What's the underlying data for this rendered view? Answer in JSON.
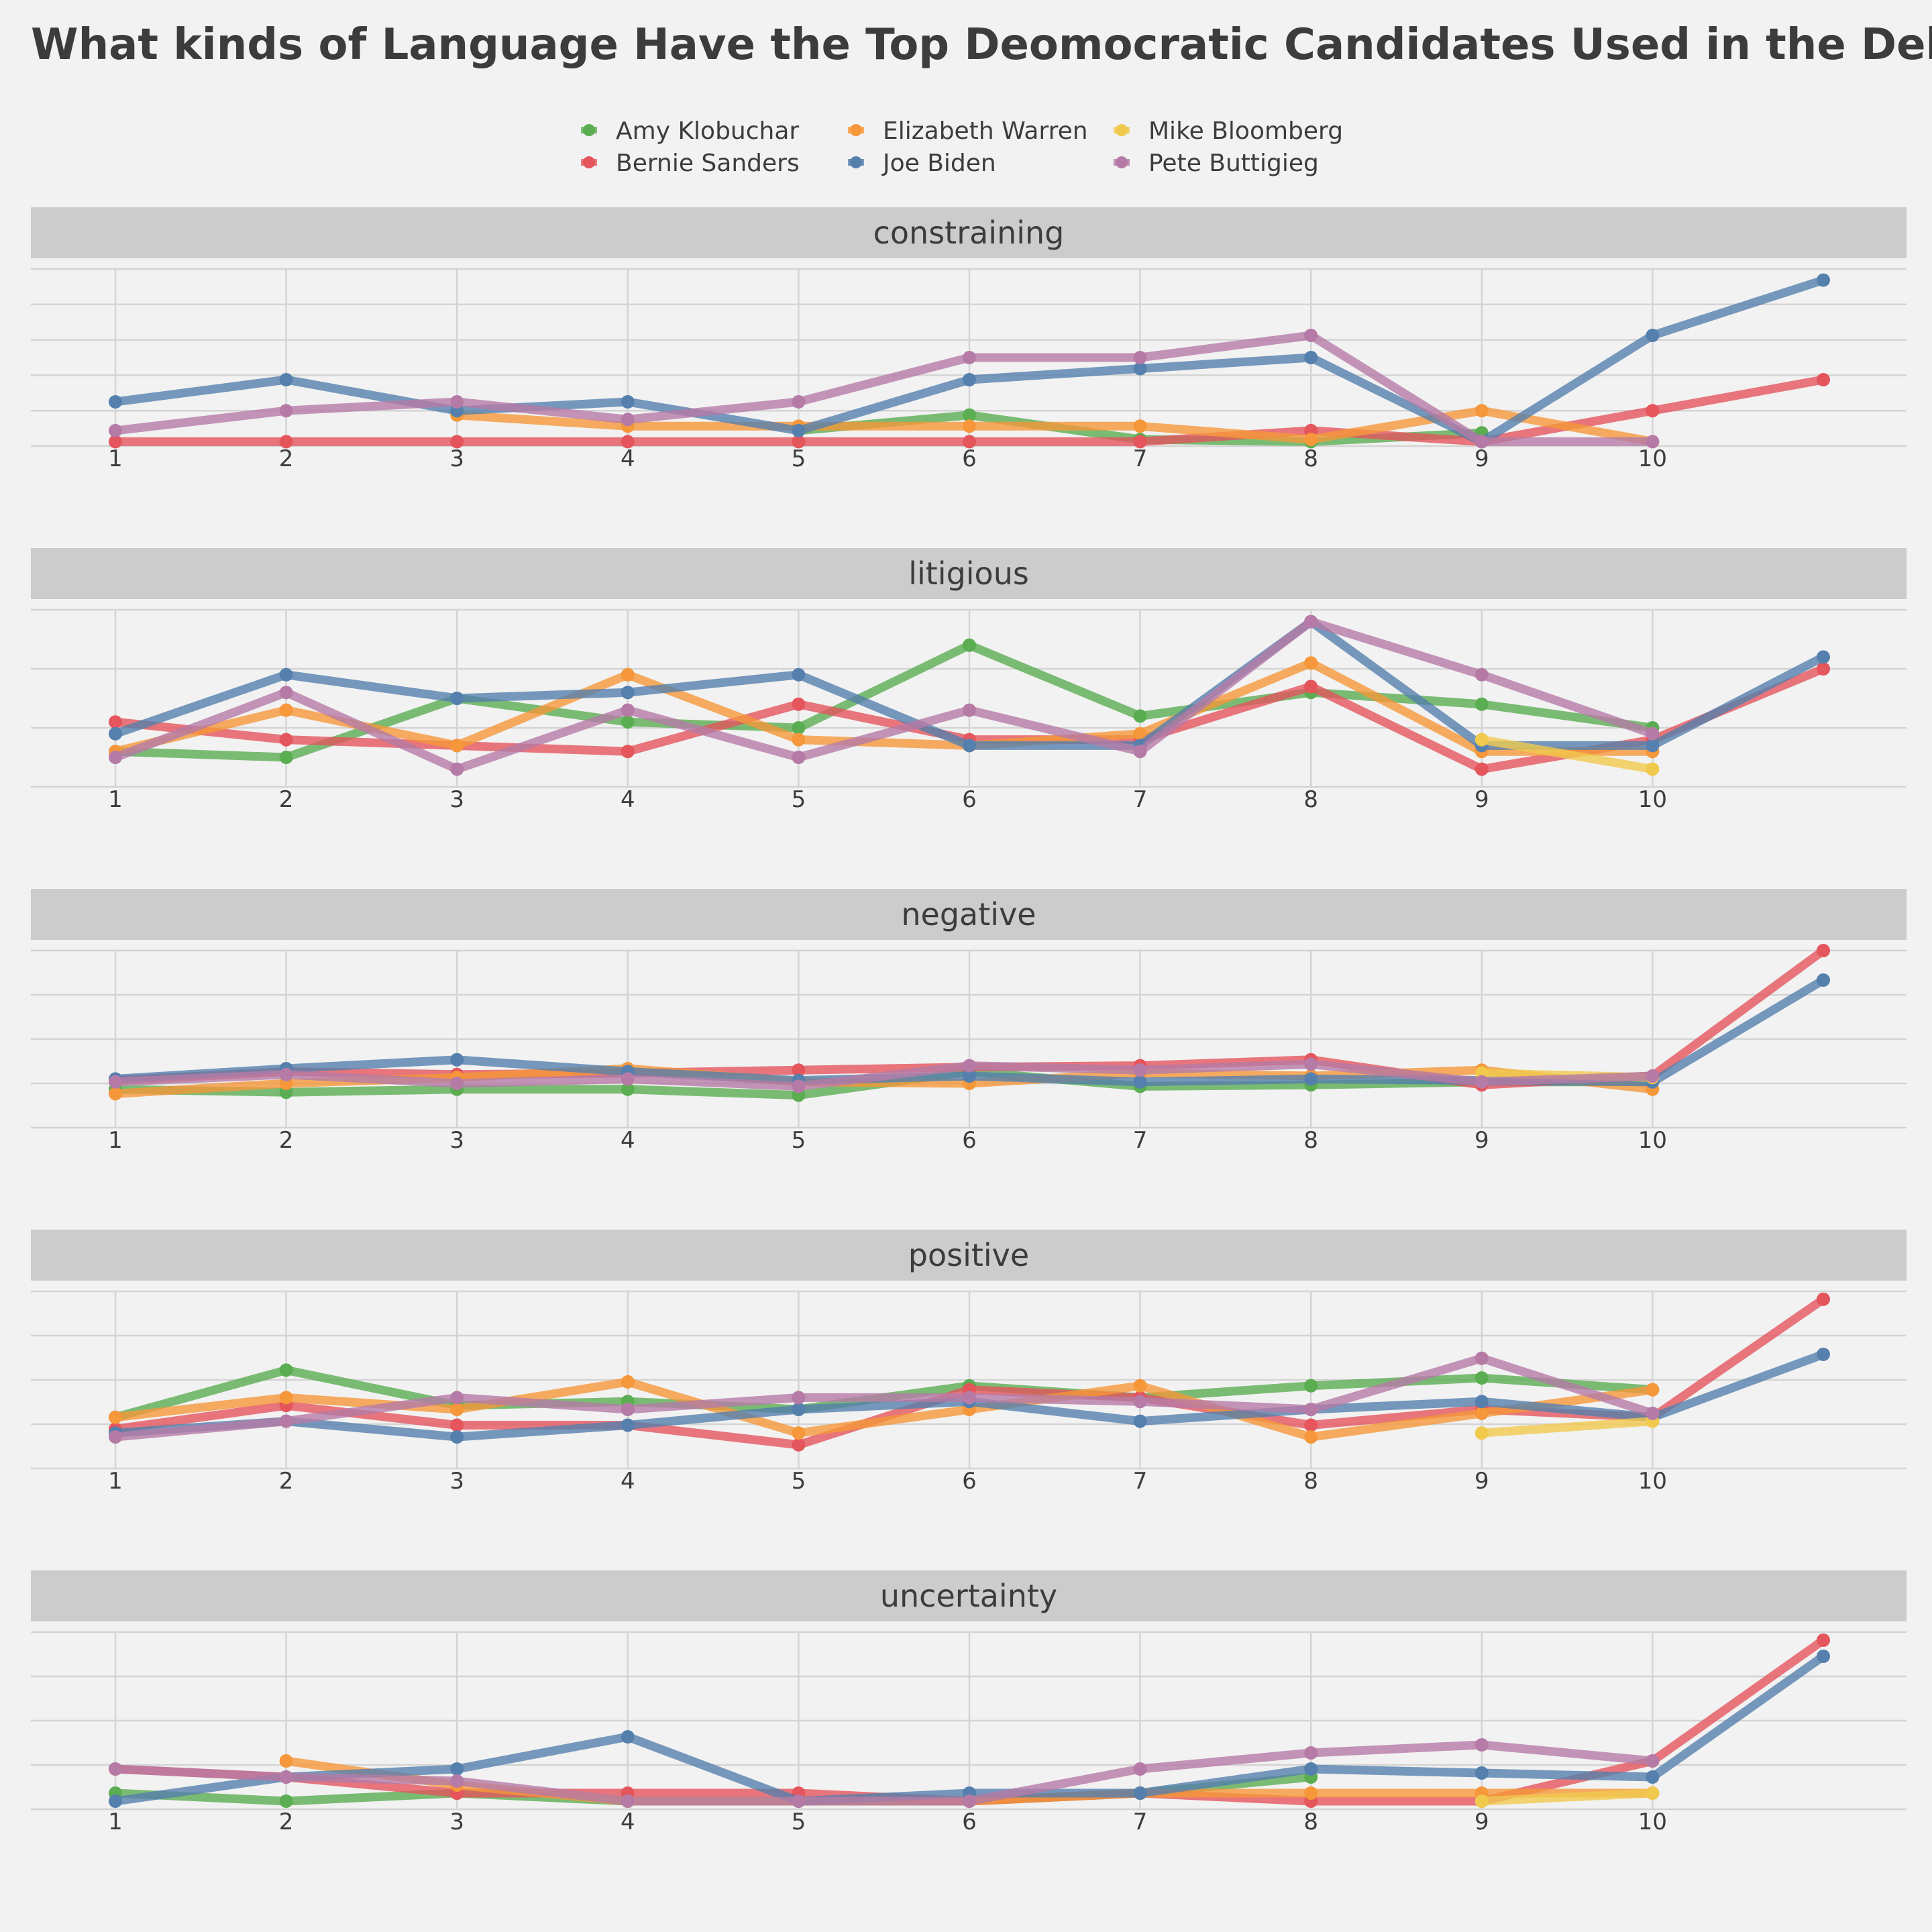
{
  "chart_data": {
    "type": "line",
    "title": "What kinds of Language Have the Top Deomocratic Candidates Used in the Debates?",
    "x": [
      1,
      2,
      3,
      4,
      5,
      6,
      7,
      8,
      9,
      10,
      11
    ],
    "x_tick_labels": [
      "1",
      "2",
      "3",
      "4",
      "5",
      "6",
      "7",
      "8",
      "9",
      "10"
    ],
    "legend": {
      "position": "top"
    },
    "series_styles": [
      {
        "name": "Amy Klobuchar",
        "color": "#5bad52"
      },
      {
        "name": "Bernie Sanders",
        "color": "#e4555c"
      },
      {
        "name": "Elizabeth Warren",
        "color": "#f5973a"
      },
      {
        "name": "Joe Biden",
        "color": "#5580ad"
      },
      {
        "name": "Mike Bloomberg",
        "color": "#f0c94d"
      },
      {
        "name": "Pete Buttigieg",
        "color": "#b57ba6"
      }
    ],
    "facets": [
      {
        "label": "constraining",
        "series": [
          {
            "name": "Amy Klobuchar",
            "values": [
              null,
              null,
              null,
              null,
              0.7,
              1.4,
              0.3,
              0.2,
              0.6,
              null,
              null
            ]
          },
          {
            "name": "Bernie Sanders",
            "values": [
              0.2,
              0.2,
              0.2,
              0.2,
              0.2,
              0.2,
              0.2,
              0.7,
              0.2,
              1.6,
              3.0
            ]
          },
          {
            "name": "Elizabeth Warren",
            "values": [
              null,
              null,
              1.4,
              0.9,
              0.9,
              0.9,
              0.9,
              0.3,
              1.6,
              0.2,
              null
            ]
          },
          {
            "name": "Joe Biden",
            "values": [
              2.0,
              3.0,
              1.6,
              2.0,
              0.7,
              3.0,
              3.5,
              4.0,
              0.2,
              5.0,
              7.5
            ]
          },
          {
            "name": "Mike Bloomberg",
            "values": [
              null,
              null,
              null,
              null,
              null,
              null,
              null,
              null,
              null,
              null,
              null
            ]
          },
          {
            "name": "Pete Buttigieg",
            "values": [
              0.7,
              1.6,
              2.0,
              1.2,
              2.0,
              4.0,
              4.0,
              5.0,
              0.2,
              0.2,
              null
            ]
          }
        ]
      },
      {
        "label": "litigious",
        "series": [
          {
            "name": "Amy Klobuchar",
            "values": [
              0.6,
              0.5,
              1.5,
              1.1,
              1.0,
              2.4,
              1.2,
              1.6,
              1.4,
              1.0,
              null
            ]
          },
          {
            "name": "Bernie Sanders",
            "values": [
              1.1,
              0.8,
              0.7,
              0.6,
              1.4,
              0.8,
              0.8,
              1.7,
              0.3,
              0.8,
              2.0
            ]
          },
          {
            "name": "Elizabeth Warren",
            "values": [
              0.6,
              1.3,
              0.7,
              1.9,
              0.8,
              0.7,
              0.9,
              2.1,
              0.6,
              0.6,
              null
            ]
          },
          {
            "name": "Joe Biden",
            "values": [
              0.9,
              1.9,
              1.5,
              1.6,
              1.9,
              0.7,
              0.7,
              2.8,
              0.7,
              0.7,
              2.2
            ]
          },
          {
            "name": "Mike Bloomberg",
            "values": [
              null,
              null,
              null,
              null,
              null,
              null,
              null,
              null,
              0.8,
              0.3,
              null
            ]
          },
          {
            "name": "Pete Buttigieg",
            "values": [
              0.5,
              1.6,
              0.3,
              1.3,
              0.5,
              1.3,
              0.6,
              2.8,
              1.9,
              0.9,
              null
            ]
          }
        ]
      },
      {
        "label": "negative",
        "series": [
          {
            "name": "Amy Klobuchar",
            "values": [
              2.6,
              2.4,
              2.6,
              2.6,
              2.2,
              3.8,
              2.8,
              2.9,
              3.1,
              3.1,
              null
            ]
          },
          {
            "name": "Bernie Sanders",
            "values": [
              3.2,
              3.8,
              3.6,
              3.7,
              3.9,
              4.1,
              4.2,
              4.6,
              2.9,
              3.5,
              12.0
            ]
          },
          {
            "name": "Elizabeth Warren",
            "values": [
              2.3,
              3.0,
              3.4,
              4.0,
              3.1,
              3.0,
              3.7,
              3.5,
              3.9,
              2.6,
              null
            ]
          },
          {
            "name": "Joe Biden",
            "values": [
              3.3,
              4.0,
              4.6,
              3.8,
              3.2,
              3.5,
              3.1,
              3.3,
              3.2,
              3.1,
              10.0
            ]
          },
          {
            "name": "Mike Bloomberg",
            "values": [
              null,
              null,
              null,
              null,
              null,
              null,
              null,
              null,
              3.7,
              3.4,
              null
            ]
          },
          {
            "name": "Pete Buttigieg",
            "values": [
              3.1,
              3.6,
              3.0,
              3.3,
              2.8,
              4.2,
              3.9,
              4.3,
              3.1,
              3.5,
              null
            ]
          }
        ]
      },
      {
        "label": "positive",
        "series": [
          {
            "name": "Amy Klobuchar",
            "values": [
              3.8,
              5.0,
              4.1,
              4.2,
              4.0,
              4.6,
              4.3,
              4.6,
              4.8,
              4.5,
              null
            ]
          },
          {
            "name": "Bernie Sanders",
            "values": [
              3.5,
              4.1,
              3.6,
              3.6,
              3.1,
              4.5,
              4.3,
              3.6,
              4.0,
              3.8,
              6.8
            ]
          },
          {
            "name": "Elizabeth Warren",
            "values": [
              3.8,
              4.3,
              4.0,
              4.7,
              3.4,
              4.0,
              4.6,
              3.3,
              3.9,
              4.5,
              null
            ]
          },
          {
            "name": "Joe Biden",
            "values": [
              3.4,
              3.7,
              3.3,
              3.6,
              4.0,
              4.2,
              3.7,
              4.0,
              4.2,
              3.8,
              5.4
            ]
          },
          {
            "name": "Mike Bloomberg",
            "values": [
              null,
              null,
              null,
              null,
              null,
              null,
              null,
              null,
              3.4,
              3.7,
              null
            ]
          },
          {
            "name": "Pete Buttigieg",
            "values": [
              3.3,
              3.7,
              4.3,
              4.0,
              4.3,
              4.3,
              4.2,
              4.0,
              5.3,
              3.9,
              null
            ]
          }
        ]
      },
      {
        "label": "uncertainty",
        "series": [
          {
            "name": "Amy Klobuchar",
            "values": [
              1.2,
              1.0,
              1.2,
              1.0,
              1.0,
              1.0,
              1.2,
              1.6,
              null,
              null,
              null
            ]
          },
          {
            "name": "Bernie Sanders",
            "values": [
              1.8,
              1.6,
              1.2,
              1.2,
              1.2,
              1.0,
              1.2,
              1.0,
              1.0,
              2.0,
              5.0
            ]
          },
          {
            "name": "Elizabeth Warren",
            "values": [
              null,
              2.0,
              1.4,
              1.0,
              1.0,
              1.0,
              1.2,
              1.2,
              1.2,
              1.2,
              null
            ]
          },
          {
            "name": "Joe Biden",
            "values": [
              1.0,
              1.6,
              1.8,
              2.6,
              1.0,
              1.2,
              1.2,
              1.8,
              1.7,
              1.6,
              4.6
            ]
          },
          {
            "name": "Mike Bloomberg",
            "values": [
              null,
              null,
              null,
              null,
              null,
              null,
              null,
              null,
              1.0,
              1.2,
              null
            ]
          },
          {
            "name": "Pete Buttigieg",
            "values": [
              1.8,
              1.6,
              1.5,
              1.0,
              1.0,
              1.0,
              1.8,
              2.2,
              2.4,
              2.0,
              null
            ]
          }
        ]
      }
    ]
  }
}
